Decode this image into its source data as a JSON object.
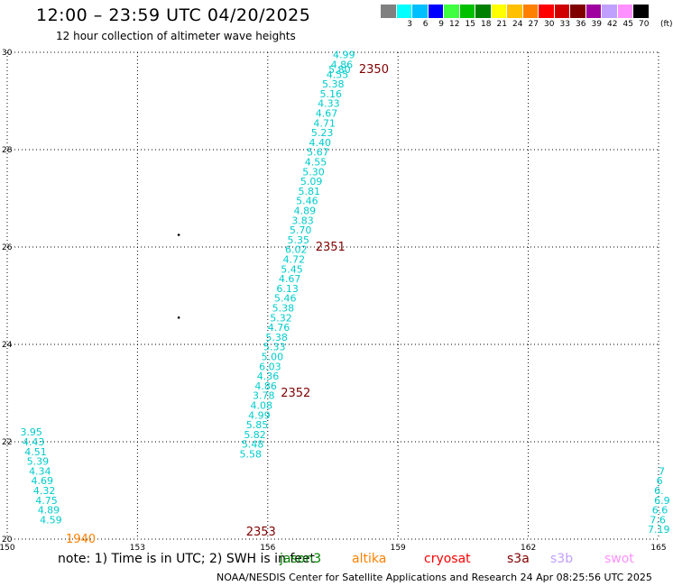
{
  "header": {
    "title": "12:00 – 23:59 UTC 04/20/2025",
    "subtitle": "12 hour collection of altimeter wave heights"
  },
  "legend": {
    "labels": [
      "3",
      "6",
      "9",
      "12",
      "15",
      "18",
      "21",
      "24",
      "27",
      "30",
      "33",
      "36",
      "39",
      "42",
      "45",
      "70"
    ],
    "colors": [
      "#808080",
      "#00ffff",
      "#00bfff",
      "#0000ff",
      "#40ff40",
      "#00c000",
      "#008000",
      "#ffff00",
      "#ffc000",
      "#ff8000",
      "#ff0000",
      "#d00000",
      "#800000",
      "#a000a0",
      "#c0a0ff",
      "#ff90ff",
      "#000000"
    ],
    "unit": "(ft)"
  },
  "footer": {
    "note": "note:  1) Time is in UTC;  2) SWH is in feet",
    "satellites": [
      {
        "name": "jason3",
        "color": "#008000"
      },
      {
        "name": "altika",
        "color": "#ff8000"
      },
      {
        "name": "cryosat",
        "color": "#ff0000"
      },
      {
        "name": "s3a",
        "color": "#800000"
      },
      {
        "name": "s3b",
        "color": "#c0a0ff"
      },
      {
        "name": "swot",
        "color": "#ff90ff"
      }
    ],
    "credit": "NOAA/NESDIS Center for Satellite Applications and Research     24 Apr 08:25:56 UTC 2025"
  },
  "chart_data": {
    "type": "scatter",
    "xlim": [
      150,
      165
    ],
    "ylim": [
      20,
      30
    ],
    "x_ticks": [
      "150",
      "153",
      "156",
      "159",
      "162",
      "165"
    ],
    "y_ticks": [
      "20",
      "22",
      "24",
      "26",
      "28",
      "30"
    ],
    "grid": true,
    "series": [
      {
        "color": "#00cccc",
        "points": [
          {
            "x": 157.5,
            "y": 29.95,
            "label": "4.99"
          },
          {
            "x": 157.45,
            "y": 29.75,
            "label": "4.86"
          },
          {
            "x": 157.35,
            "y": 29.55,
            "label": "4.55"
          },
          {
            "x": 157.4,
            "y": 29.65,
            "label": "5.80"
          },
          {
            "x": 157.25,
            "y": 29.35,
            "label": "5.38"
          },
          {
            "x": 157.2,
            "y": 29.15,
            "label": "5.16"
          },
          {
            "x": 157.15,
            "y": 28.95,
            "label": "4.33"
          },
          {
            "x": 157.1,
            "y": 28.75,
            "label": "4.67"
          },
          {
            "x": 157.05,
            "y": 28.55,
            "label": "4.71"
          },
          {
            "x": 157.0,
            "y": 28.35,
            "label": "5.23"
          },
          {
            "x": 156.95,
            "y": 28.15,
            "label": "4.40"
          },
          {
            "x": 156.9,
            "y": 27.95,
            "label": "5.67"
          },
          {
            "x": 156.85,
            "y": 27.75,
            "label": "4.55"
          },
          {
            "x": 156.8,
            "y": 27.55,
            "label": "5.30"
          },
          {
            "x": 156.75,
            "y": 27.35,
            "label": "5.09"
          },
          {
            "x": 156.7,
            "y": 27.15,
            "label": "5.81"
          },
          {
            "x": 156.65,
            "y": 26.95,
            "label": "5.46"
          },
          {
            "x": 156.6,
            "y": 26.75,
            "label": "4.89"
          },
          {
            "x": 156.55,
            "y": 26.55,
            "label": "3.83"
          },
          {
            "x": 156.5,
            "y": 26.35,
            "label": "5.70"
          },
          {
            "x": 156.45,
            "y": 26.15,
            "label": "5.35"
          },
          {
            "x": 156.4,
            "y": 25.95,
            "label": "6.02"
          },
          {
            "x": 156.35,
            "y": 25.75,
            "label": "4.72"
          },
          {
            "x": 156.3,
            "y": 25.55,
            "label": "5.45"
          },
          {
            "x": 156.25,
            "y": 25.35,
            "label": "4.67"
          },
          {
            "x": 156.2,
            "y": 25.15,
            "label": "6.13"
          },
          {
            "x": 156.15,
            "y": 24.95,
            "label": "5.46"
          },
          {
            "x": 156.1,
            "y": 24.75,
            "label": "5.38"
          },
          {
            "x": 156.05,
            "y": 24.55,
            "label": "5.32"
          },
          {
            "x": 156.0,
            "y": 24.35,
            "label": "4.76"
          },
          {
            "x": 155.95,
            "y": 24.15,
            "label": "5.38"
          },
          {
            "x": 155.9,
            "y": 23.95,
            "label": "5.33"
          },
          {
            "x": 155.85,
            "y": 23.75,
            "label": "5.00"
          },
          {
            "x": 155.8,
            "y": 23.55,
            "label": "6.03"
          },
          {
            "x": 155.75,
            "y": 23.35,
            "label": "4.36"
          },
          {
            "x": 155.7,
            "y": 23.15,
            "label": "4.86"
          },
          {
            "x": 155.65,
            "y": 22.95,
            "label": "3.78"
          },
          {
            "x": 155.6,
            "y": 22.75,
            "label": "4.08"
          },
          {
            "x": 155.55,
            "y": 22.55,
            "label": "4.99"
          },
          {
            "x": 155.5,
            "y": 22.35,
            "label": "5.85"
          },
          {
            "x": 155.45,
            "y": 22.15,
            "label": "5.82"
          },
          {
            "x": 155.4,
            "y": 21.95,
            "label": "5.48"
          },
          {
            "x": 155.35,
            "y": 21.75,
            "label": "5.58"
          },
          {
            "x": 150.3,
            "y": 22.2,
            "label": "3.95"
          },
          {
            "x": 150.35,
            "y": 22.0,
            "label": "4.43"
          },
          {
            "x": 150.4,
            "y": 21.8,
            "label": "4.51"
          },
          {
            "x": 150.45,
            "y": 21.6,
            "label": "5.39"
          },
          {
            "x": 150.5,
            "y": 21.4,
            "label": "4.34"
          },
          {
            "x": 150.55,
            "y": 21.2,
            "label": "4.69"
          },
          {
            "x": 150.6,
            "y": 21.0,
            "label": "4.32"
          },
          {
            "x": 150.65,
            "y": 20.8,
            "label": "4.75"
          },
          {
            "x": 150.7,
            "y": 20.6,
            "label": "4.89"
          },
          {
            "x": 150.75,
            "y": 20.4,
            "label": "4.59"
          },
          {
            "x": 165.0,
            "y": 21.4,
            "label": "7"
          },
          {
            "x": 164.95,
            "y": 21.2,
            "label": "6"
          },
          {
            "x": 164.9,
            "y": 21.0,
            "label": "6."
          },
          {
            "x": 164.9,
            "y": 20.8,
            "label": "6.9"
          },
          {
            "x": 164.85,
            "y": 20.6,
            "label": "6.6"
          },
          {
            "x": 164.8,
            "y": 20.4,
            "label": "7.6"
          },
          {
            "x": 164.75,
            "y": 20.2,
            "label": "7.19"
          }
        ]
      },
      {
        "color": "#800000",
        "points": [
          {
            "x": 158.1,
            "y": 29.65,
            "label": "2350"
          },
          {
            "x": 157.1,
            "y": 26.0,
            "label": "2351"
          },
          {
            "x": 156.3,
            "y": 23.0,
            "label": "2352"
          },
          {
            "x": 155.5,
            "y": 20.15,
            "label": "2353"
          }
        ]
      },
      {
        "color": "#ff8000",
        "points": [
          {
            "x": 151.35,
            "y": 20.0,
            "label": "1940"
          }
        ]
      },
      {
        "color": "#000000",
        "points": [
          {
            "x": 153.95,
            "y": 26.25,
            "label": ""
          },
          {
            "x": 153.95,
            "y": 24.55,
            "label": ""
          }
        ]
      }
    ]
  }
}
